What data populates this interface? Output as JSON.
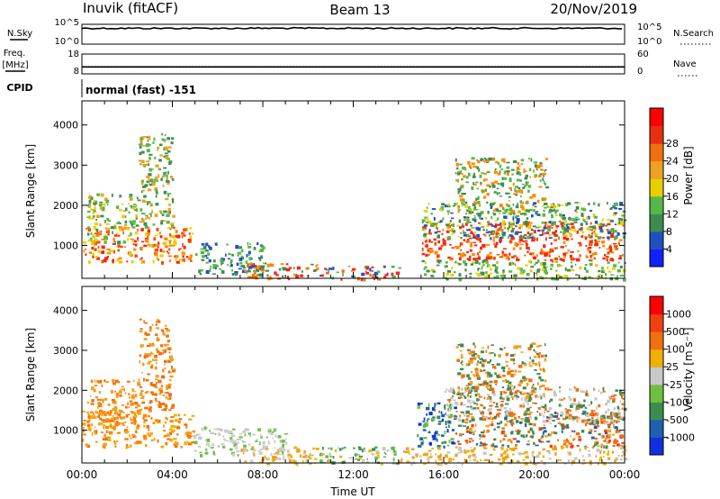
{
  "header": {
    "station": "Inuvik (fitACF)",
    "beam": "Beam 13",
    "date": "20/Nov/2019"
  },
  "strip": {
    "nsky_label": "N.Sky",
    "nsearch_label": "N.Search",
    "count_ticks": [
      "10^5",
      "10^0"
    ],
    "freq_label": "Freq.",
    "freq_unit": "[MHz]",
    "freq_ticks": [
      "18",
      "8"
    ],
    "nave_label": "Nave",
    "nave_ticks": [
      "60",
      "0"
    ],
    "cpid_label": "CPID",
    "cpid_text": "normal (fast) -151",
    "nsky_value_log": 4.0,
    "freq_value_mhz": 11.5,
    "nave_value": 22
  },
  "chart_data": [
    {
      "type": "heatmap",
      "panel": "power",
      "ylabel": "Slant Range [km]",
      "ylim": [
        180,
        4600
      ],
      "yticks": [
        "1000",
        "2000",
        "3000",
        "4000"
      ],
      "ytick_values": [
        1000,
        2000,
        3000,
        4000
      ],
      "x_range_hours": [
        0,
        24
      ],
      "colorbar": {
        "label": "Power [dB]",
        "ticks": [
          "4",
          "8",
          "12",
          "16",
          "20",
          "24",
          "28"
        ],
        "colors": [
          "#1020ff",
          "#2050c0",
          "#3c8c50",
          "#56b848",
          "#e8d000",
          "#f0a020",
          "#f07010",
          "#e83010",
          "#ff0000"
        ]
      },
      "regions": [
        {
          "t": [
            0.0,
            4.9
          ],
          "r": [
            600,
            1500
          ],
          "colors": [
            "#ff2010",
            "#f05000",
            "#ff8800",
            "#e8d000"
          ]
        },
        {
          "t": [
            0.2,
            2.5
          ],
          "r": [
            1100,
            2300
          ],
          "colors": [
            "#56b848",
            "#3c8c50",
            "#e8d000",
            "#f0a020"
          ]
        },
        {
          "t": [
            2.5,
            4.0
          ],
          "r": [
            1500,
            3800
          ],
          "colors": [
            "#56b848",
            "#f0a020",
            "#3c8c50"
          ]
        },
        {
          "t": [
            5.0,
            8.0
          ],
          "r": [
            300,
            1100
          ],
          "colors": [
            "#2050c0",
            "#3c8c50",
            "#56b848"
          ]
        },
        {
          "t": [
            7.0,
            10.5
          ],
          "r": [
            180,
            600
          ],
          "colors": [
            "#ff2010",
            "#f07010",
            "#ff8800",
            "#3c8c50"
          ]
        },
        {
          "t": [
            10.5,
            14.0
          ],
          "r": [
            180,
            500
          ],
          "colors": [
            "#2050c0",
            "#f07010",
            "#ff2010",
            "#56b848"
          ]
        },
        {
          "t": [
            15.0,
            23.9
          ],
          "r": [
            650,
            1600
          ],
          "colors": [
            "#ff2010",
            "#e83010",
            "#ff8800",
            "#f05000"
          ]
        },
        {
          "t": [
            15.0,
            24.0
          ],
          "r": [
            1200,
            2100
          ],
          "colors": [
            "#56b848",
            "#3c8c50",
            "#e8d000",
            "#2050c0"
          ]
        },
        {
          "t": [
            16.5,
            20.5
          ],
          "r": [
            1800,
            3200
          ],
          "colors": [
            "#56b848",
            "#3c8c50",
            "#ff8800"
          ]
        },
        {
          "t": [
            15.0,
            24.0
          ],
          "r": [
            180,
            650
          ],
          "colors": [
            "#56b848",
            "#e8d000",
            "#3c8c50"
          ]
        }
      ]
    },
    {
      "type": "heatmap",
      "panel": "velocity",
      "ylabel": "Slant Range [km]",
      "xlabel": "Time UT",
      "ylim": [
        180,
        4600
      ],
      "yticks": [
        "1000",
        "2000",
        "3000",
        "4000"
      ],
      "ytick_values": [
        1000,
        2000,
        3000,
        4000
      ],
      "x_range_hours": [
        0,
        24
      ],
      "xticks": [
        "00:00",
        "04:00",
        "08:00",
        "12:00",
        "16:00",
        "20:00",
        "00:00"
      ],
      "xtick_hours": [
        0,
        4,
        8,
        12,
        16,
        20,
        24
      ],
      "colorbar": {
        "label": "Velocity [m s⁻¹]",
        "ticks": [
          "1000",
          "500",
          "100",
          "25",
          "-25",
          "-100",
          "-500",
          "-1000"
        ],
        "colors": [
          "#1030e0",
          "#2060b0",
          "#3c8c50",
          "#70c040",
          "#c8c8c8",
          "#f0b000",
          "#f07010",
          "#f04010",
          "#ff0000"
        ]
      },
      "regions": [
        {
          "t": [
            0.0,
            4.9
          ],
          "r": [
            600,
            1500
          ],
          "colors": [
            "#f0a020",
            "#ff8800",
            "#f07010",
            "#f0b000"
          ]
        },
        {
          "t": [
            0.2,
            2.5
          ],
          "r": [
            1100,
            2300
          ],
          "colors": [
            "#f0a020",
            "#ff8800",
            "#f07010"
          ]
        },
        {
          "t": [
            2.5,
            4.0
          ],
          "r": [
            1500,
            3800
          ],
          "colors": [
            "#f07010",
            "#f0a020"
          ]
        },
        {
          "t": [
            4.9,
            9.0
          ],
          "r": [
            400,
            1100
          ],
          "colors": [
            "#c8c8c8",
            "#d0d0d0",
            "#70c040"
          ]
        },
        {
          "t": [
            7.0,
            10.5
          ],
          "r": [
            180,
            600
          ],
          "colors": [
            "#f0a020",
            "#f0b000",
            "#c8c8c8"
          ]
        },
        {
          "t": [
            10.5,
            14.0
          ],
          "r": [
            180,
            600
          ],
          "colors": [
            "#56b848",
            "#3c8c50",
            "#f0b000",
            "#c8c8c8"
          ]
        },
        {
          "t": [
            14.8,
            16.5
          ],
          "r": [
            600,
            1700
          ],
          "colors": [
            "#1030e0",
            "#2060b0",
            "#3c8c50",
            "#70c040"
          ]
        },
        {
          "t": [
            16.5,
            23.9
          ],
          "r": [
            600,
            1500
          ],
          "colors": [
            "#f07010",
            "#f0a020",
            "#3c8c50",
            "#2060b0",
            "#f04010"
          ]
        },
        {
          "t": [
            16.0,
            24.0
          ],
          "r": [
            1200,
            2100
          ],
          "colors": [
            "#c8c8c8",
            "#3c8c50",
            "#f07010"
          ]
        },
        {
          "t": [
            16.5,
            20.5
          ],
          "r": [
            1800,
            3200
          ],
          "colors": [
            "#f07010",
            "#3c8c50",
            "#f0a020"
          ]
        },
        {
          "t": [
            14.0,
            24.0
          ],
          "r": [
            180,
            600
          ],
          "colors": [
            "#f0b000",
            "#c8c8c8",
            "#f0a020"
          ]
        }
      ]
    }
  ]
}
